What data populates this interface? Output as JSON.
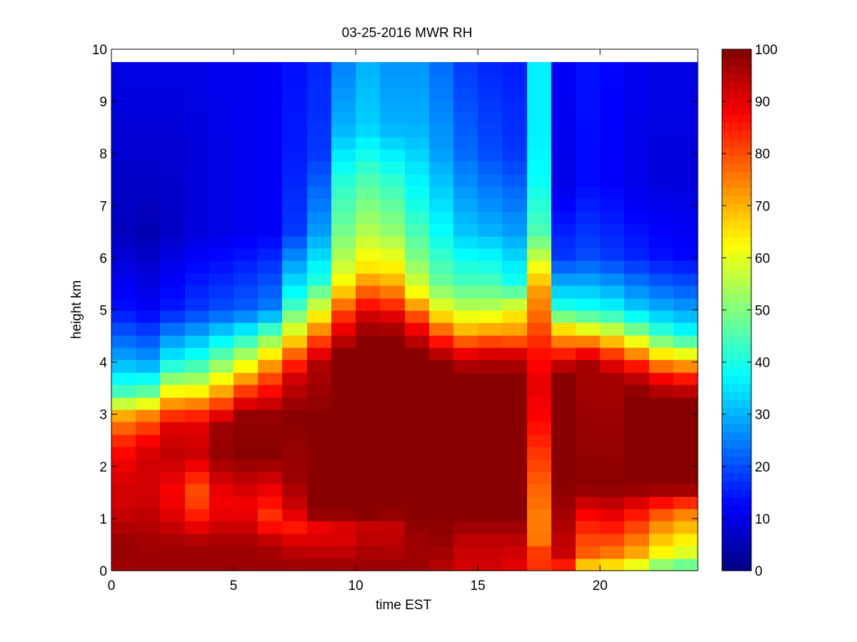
{
  "chart_data": {
    "type": "heatmap",
    "title": "03-25-2016 MWR RH",
    "xlabel": "time EST",
    "ylabel": "height km",
    "xlim": [
      0,
      24
    ],
    "ylim": [
      0,
      10
    ],
    "xticks": [
      "0",
      "5",
      "10",
      "15",
      "20"
    ],
    "yticks": [
      "0",
      "1",
      "2",
      "3",
      "4",
      "5",
      "6",
      "7",
      "8",
      "9",
      "10"
    ],
    "x": [
      0.5,
      1.5,
      2.5,
      3.5,
      4.5,
      5.5,
      6.5,
      7.5,
      8.5,
      9.5,
      10.5,
      11.5,
      12.5,
      13.5,
      14.5,
      15.5,
      16.5,
      17.5,
      18.5,
      19.5,
      20.5,
      21.5,
      22.5,
      23.5
    ],
    "y_top_km": 9.75,
    "colorscale": "jet",
    "colorbar": {
      "min": 0,
      "max": 100,
      "ticks": [
        "0",
        "10",
        "20",
        "30",
        "40",
        "50",
        "60",
        "70",
        "80",
        "90",
        "100"
      ]
    },
    "profiles": [
      [
        [
          0,
          95
        ],
        [
          0.1,
          97
        ],
        [
          0.5,
          98
        ],
        [
          1.2,
          92
        ],
        [
          1.6,
          92
        ],
        [
          2.2,
          88
        ],
        [
          2.6,
          82
        ],
        [
          3.0,
          70
        ],
        [
          3.4,
          45
        ],
        [
          4.0,
          30
        ],
        [
          5.0,
          14
        ],
        [
          6.5,
          6
        ],
        [
          8,
          8
        ],
        [
          9.75,
          10
        ]
      ],
      [
        [
          0,
          95
        ],
        [
          0.1,
          97
        ],
        [
          0.5,
          97
        ],
        [
          1.2,
          93
        ],
        [
          1.6,
          92
        ],
        [
          2.2,
          92
        ],
        [
          2.6,
          86
        ],
        [
          3.0,
          74
        ],
        [
          3.4,
          48
        ],
        [
          4.0,
          28
        ],
        [
          5.0,
          12
        ],
        [
          6.5,
          5
        ],
        [
          8,
          8
        ],
        [
          9.75,
          10
        ]
      ],
      [
        [
          0,
          95
        ],
        [
          0.1,
          97
        ],
        [
          0.5,
          97
        ],
        [
          1.2,
          89
        ],
        [
          1.6,
          88
        ],
        [
          2.2,
          94
        ],
        [
          2.8,
          90
        ],
        [
          3.1,
          78
        ],
        [
          3.6,
          55
        ],
        [
          4.0,
          38
        ],
        [
          5.0,
          15
        ],
        [
          6.5,
          7
        ],
        [
          8,
          8
        ],
        [
          9.75,
          10
        ]
      ],
      [
        [
          0,
          95
        ],
        [
          0.1,
          97
        ],
        [
          0.5,
          97
        ],
        [
          1.2,
          82
        ],
        [
          1.6,
          80
        ],
        [
          2.2,
          93
        ],
        [
          2.8,
          90
        ],
        [
          3.1,
          80
        ],
        [
          3.6,
          56
        ],
        [
          4.0,
          42
        ],
        [
          5.0,
          18
        ],
        [
          6.5,
          9
        ],
        [
          8,
          9
        ],
        [
          9.75,
          10
        ]
      ],
      [
        [
          0,
          95
        ],
        [
          0.1,
          97
        ],
        [
          0.5,
          97
        ],
        [
          1.2,
          88
        ],
        [
          1.6,
          90
        ],
        [
          2.2,
          98
        ],
        [
          2.8,
          97
        ],
        [
          3.1,
          85
        ],
        [
          3.6,
          65
        ],
        [
          4.0,
          50
        ],
        [
          5.0,
          20
        ],
        [
          6.5,
          10
        ],
        [
          8,
          10
        ],
        [
          9.75,
          11
        ]
      ],
      [
        [
          0,
          95
        ],
        [
          0.1,
          97
        ],
        [
          0.5,
          97
        ],
        [
          1.2,
          88
        ],
        [
          1.6,
          92
        ],
        [
          2.2,
          99
        ],
        [
          3.0,
          98
        ],
        [
          3.5,
          80
        ],
        [
          3.9,
          63
        ],
        [
          4.5,
          40
        ],
        [
          5.0,
          22
        ],
        [
          6.5,
          11
        ],
        [
          8,
          11
        ],
        [
          9.75,
          11
        ]
      ],
      [
        [
          0,
          95
        ],
        [
          0.1,
          97
        ],
        [
          0.5,
          96
        ],
        [
          1.0,
          82
        ],
        [
          1.6,
          90
        ],
        [
          2.2,
          99
        ],
        [
          3.0,
          98
        ],
        [
          3.8,
          78
        ],
        [
          4.2,
          62
        ],
        [
          4.6,
          45
        ],
        [
          5.0,
          25
        ],
        [
          6.5,
          12
        ],
        [
          8,
          12
        ],
        [
          9.75,
          12
        ]
      ],
      [
        [
          0,
          95
        ],
        [
          0.1,
          97
        ],
        [
          0.5,
          93
        ],
        [
          0.8,
          85
        ],
        [
          1.2,
          92
        ],
        [
          1.7,
          97
        ],
        [
          3.0,
          99
        ],
        [
          3.7,
          92
        ],
        [
          4.1,
          80
        ],
        [
          4.6,
          60
        ],
        [
          5.2,
          40
        ],
        [
          6.5,
          18
        ],
        [
          8,
          15
        ],
        [
          9.75,
          14
        ]
      ],
      [
        [
          0,
          95
        ],
        [
          0.1,
          97
        ],
        [
          0.5,
          92
        ],
        [
          0.8,
          88
        ],
        [
          1.1,
          99
        ],
        [
          3.0,
          99
        ],
        [
          4.0,
          95
        ],
        [
          4.4,
          82
        ],
        [
          5.0,
          60
        ],
        [
          5.6,
          40
        ],
        [
          6.5,
          28
        ],
        [
          8,
          18
        ],
        [
          9.75,
          16
        ]
      ],
      [
        [
          0,
          95
        ],
        [
          0.1,
          97
        ],
        [
          0.5,
          92
        ],
        [
          0.8,
          90
        ],
        [
          1.1,
          99
        ],
        [
          4.2,
          99
        ],
        [
          4.6,
          90
        ],
        [
          5.0,
          80
        ],
        [
          5.5,
          63
        ],
        [
          6.0,
          55
        ],
        [
          6.6,
          48
        ],
        [
          7.4,
          42
        ],
        [
          8.5,
          30
        ],
        [
          9.75,
          25
        ]
      ],
      [
        [
          0,
          95
        ],
        [
          0.1,
          97
        ],
        [
          0.5,
          95
        ],
        [
          0.8,
          92
        ],
        [
          1.0,
          99
        ],
        [
          4.5,
          99
        ],
        [
          4.9,
          92
        ],
        [
          5.3,
          80
        ],
        [
          5.8,
          65
        ],
        [
          6.5,
          55
        ],
        [
          7.5,
          45
        ],
        [
          8.5,
          33
        ],
        [
          9.75,
          30
        ]
      ],
      [
        [
          0,
          95
        ],
        [
          0.1,
          97
        ],
        [
          0.6,
          94
        ],
        [
          0.9,
          93
        ],
        [
          1.1,
          99
        ],
        [
          4.5,
          99
        ],
        [
          4.9,
          90
        ],
        [
          5.2,
          80
        ],
        [
          5.7,
          66
        ],
        [
          6.5,
          52
        ],
        [
          7.5,
          42
        ],
        [
          8.5,
          30
        ],
        [
          9.75,
          27
        ]
      ],
      [
        [
          0,
          95
        ],
        [
          0.1,
          97
        ],
        [
          0.6,
          97
        ],
        [
          1.0,
          99
        ],
        [
          4.2,
          99
        ],
        [
          4.6,
          90
        ],
        [
          5.0,
          76
        ],
        [
          5.4,
          60
        ],
        [
          6.0,
          50
        ],
        [
          7.0,
          40
        ],
        [
          8.5,
          30
        ],
        [
          9.75,
          27
        ]
      ],
      [
        [
          0,
          90
        ],
        [
          0.1,
          95
        ],
        [
          0.6,
          98
        ],
        [
          1.0,
          99
        ],
        [
          4.0,
          99
        ],
        [
          4.3,
          90
        ],
        [
          4.6,
          78
        ],
        [
          5.0,
          62
        ],
        [
          5.5,
          48
        ],
        [
          6.5,
          38
        ],
        [
          8.0,
          28
        ],
        [
          9.75,
          23
        ]
      ],
      [
        [
          0,
          85
        ],
        [
          0.1,
          92
        ],
        [
          0.6,
          94
        ],
        [
          1.0,
          99
        ],
        [
          3.8,
          99
        ],
        [
          4.2,
          88
        ],
        [
          4.6,
          70
        ],
        [
          5.0,
          57
        ],
        [
          5.5,
          45
        ],
        [
          6.5,
          32
        ],
        [
          8,
          23
        ],
        [
          9.75,
          18
        ]
      ],
      [
        [
          0,
          85
        ],
        [
          0.1,
          92
        ],
        [
          0.6,
          94
        ],
        [
          1.0,
          99
        ],
        [
          3.8,
          99
        ],
        [
          4.2,
          90
        ],
        [
          4.6,
          72
        ],
        [
          5.0,
          57
        ],
        [
          5.5,
          45
        ],
        [
          6.5,
          30
        ],
        [
          8,
          20
        ],
        [
          9.75,
          16
        ]
      ],
      [
        [
          0,
          80
        ],
        [
          0.1,
          90
        ],
        [
          0.6,
          94
        ],
        [
          1.0,
          99
        ],
        [
          3.8,
          99
        ],
        [
          4.2,
          90
        ],
        [
          4.5,
          75
        ],
        [
          5.0,
          62
        ],
        [
          5.5,
          40
        ],
        [
          6.5,
          28
        ],
        [
          8,
          18
        ],
        [
          9.75,
          15
        ]
      ],
      [
        [
          0,
          75
        ],
        [
          0.2,
          88
        ],
        [
          0.5,
          76
        ],
        [
          1.0,
          75
        ],
        [
          1.6,
          78
        ],
        [
          2.2,
          82
        ],
        [
          3.0,
          88
        ],
        [
          3.6,
          90
        ],
        [
          4.2,
          86
        ],
        [
          4.8,
          78
        ],
        [
          5.4,
          72
        ],
        [
          5.8,
          62
        ],
        [
          6.5,
          45
        ],
        [
          7.5,
          38
        ],
        [
          8.5,
          36
        ],
        [
          9.75,
          36
        ]
      ],
      [
        [
          0,
          75
        ],
        [
          0.2,
          92
        ],
        [
          0.6,
          94
        ],
        [
          1.2,
          97
        ],
        [
          1.6,
          99
        ],
        [
          3.8,
          99
        ],
        [
          4.2,
          83
        ],
        [
          4.6,
          68
        ],
        [
          5.0,
          42
        ],
        [
          6.0,
          18
        ],
        [
          7.5,
          10
        ],
        [
          9.75,
          12
        ]
      ],
      [
        [
          0,
          62
        ],
        [
          0.3,
          78
        ],
        [
          0.7,
          82
        ],
        [
          1.2,
          90
        ],
        [
          1.6,
          99
        ],
        [
          4.0,
          96
        ],
        [
          4.3,
          82
        ],
        [
          4.6,
          62
        ],
        [
          5.0,
          40
        ],
        [
          6.0,
          20
        ],
        [
          7.5,
          13
        ],
        [
          9.75,
          14
        ]
      ],
      [
        [
          0,
          60
        ],
        [
          0.3,
          75
        ],
        [
          0.7,
          83
        ],
        [
          1.2,
          92
        ],
        [
          1.6,
          99
        ],
        [
          3.8,
          96
        ],
        [
          4.2,
          80
        ],
        [
          4.6,
          58
        ],
        [
          5.0,
          38
        ],
        [
          6.0,
          18
        ],
        [
          7.5,
          12
        ],
        [
          9.75,
          13
        ]
      ],
      [
        [
          0,
          55
        ],
        [
          0.3,
          70
        ],
        [
          0.7,
          78
        ],
        [
          1.2,
          88
        ],
        [
          1.6,
          99
        ],
        [
          3.4,
          99
        ],
        [
          3.8,
          92
        ],
        [
          4.2,
          72
        ],
        [
          4.6,
          50
        ],
        [
          5.0,
          33
        ],
        [
          6.0,
          16
        ],
        [
          7.5,
          10
        ],
        [
          9.75,
          11
        ]
      ],
      [
        [
          0,
          45
        ],
        [
          0.3,
          62
        ],
        [
          0.7,
          70
        ],
        [
          1.2,
          82
        ],
        [
          1.6,
          99
        ],
        [
          3.3,
          99
        ],
        [
          3.7,
          88
        ],
        [
          4.0,
          73
        ],
        [
          4.5,
          45
        ],
        [
          5.0,
          30
        ],
        [
          6.0,
          14
        ],
        [
          7.5,
          9
        ],
        [
          9.75,
          10
        ]
      ],
      [
        [
          0,
          42
        ],
        [
          0.3,
          58
        ],
        [
          0.7,
          66
        ],
        [
          1.2,
          78
        ],
        [
          1.6,
          99
        ],
        [
          3.3,
          99
        ],
        [
          3.7,
          85
        ],
        [
          4.0,
          70
        ],
        [
          4.5,
          40
        ],
        [
          5.0,
          28
        ],
        [
          6.0,
          13
        ],
        [
          7.5,
          9
        ],
        [
          9.75,
          10
        ]
      ]
    ]
  }
}
